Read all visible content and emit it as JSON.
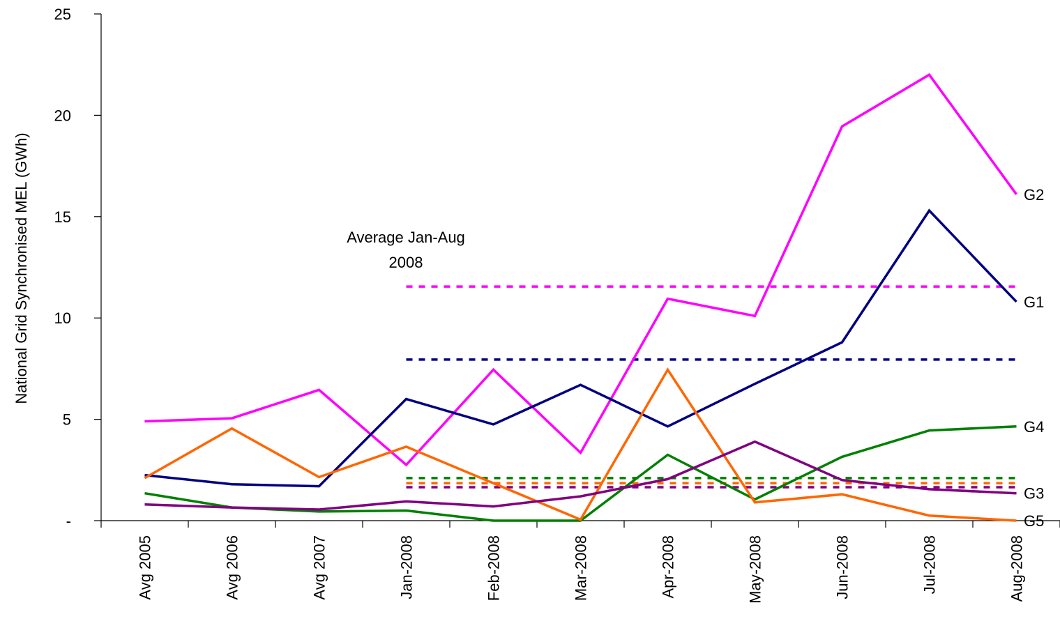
{
  "chart_data": {
    "type": "line",
    "ylabel": "National Grid Synchronised MEL (GWh)",
    "ylim": [
      0,
      25
    ],
    "yticks": [
      0,
      5,
      10,
      15,
      20,
      25
    ],
    "ytick_labels": [
      "-",
      "5",
      "10",
      "15",
      "20",
      "25"
    ],
    "categories": [
      "Avg 2005",
      "Avg 2006",
      "Avg 2007",
      "Jan-2008",
      "Feb-2008",
      "Mar-2008",
      "Apr-2008",
      "May-2008",
      "Jun-2008",
      "Jul-2008",
      "Aug-2008"
    ],
    "annotation": [
      "Average Jan-Aug",
      "2008"
    ],
    "series": [
      {
        "name": "G2",
        "color": "#ff00ff",
        "values": [
          4.9,
          5.05,
          6.45,
          2.75,
          7.45,
          3.35,
          10.95,
          10.1,
          19.45,
          22.0,
          16.1
        ],
        "average": 11.55
      },
      {
        "name": "G1",
        "color": "#000080",
        "values": [
          2.25,
          1.8,
          1.7,
          6.0,
          4.75,
          6.7,
          4.65,
          6.75,
          8.8,
          15.3,
          10.8
        ],
        "average": 7.95
      },
      {
        "name": "G4",
        "color": "#008000",
        "values": [
          1.35,
          0.65,
          0.45,
          0.5,
          0.0,
          0.0,
          3.25,
          1.05,
          3.15,
          4.45,
          4.65
        ],
        "average": 2.1
      },
      {
        "name": "G5",
        "color": "#ff6600",
        "values": [
          2.1,
          4.55,
          2.15,
          3.65,
          1.85,
          0.05,
          7.45,
          0.9,
          1.3,
          0.25,
          0.0
        ],
        "average": 1.85
      },
      {
        "name": "G3",
        "color": "#800080",
        "values": [
          0.8,
          0.65,
          0.55,
          0.95,
          0.7,
          1.2,
          2.05,
          3.9,
          2.0,
          1.55,
          1.35
        ],
        "average": 1.65
      }
    ],
    "grid": false,
    "legend": "none"
  }
}
